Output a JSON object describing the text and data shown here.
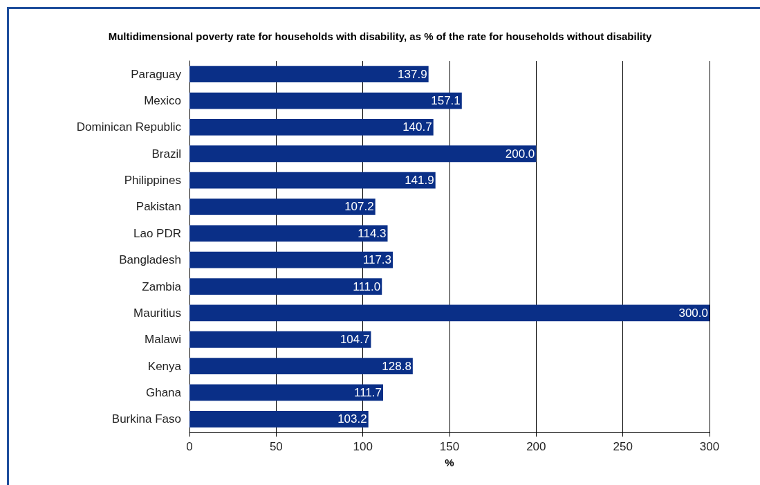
{
  "chart_data": {
    "type": "bar",
    "orientation": "horizontal",
    "title": "Multidimensional poverty rate for households with disability, as % of the rate for households without disability",
    "xlabel": "%",
    "categories": [
      "Paraguay",
      "Mexico",
      "Dominican Republic",
      "Brazil",
      "Philippines",
      "Pakistan",
      "Lao PDR",
      "Bangladesh",
      "Zambia",
      "Mauritius",
      "Malawi",
      "Kenya",
      "Ghana",
      "Burkina Faso"
    ],
    "values": [
      137.9,
      157.1,
      140.7,
      200.0,
      141.9,
      107.2,
      114.3,
      117.3,
      111.0,
      300.0,
      104.7,
      128.8,
      111.7,
      103.2
    ],
    "value_labels": [
      "137.9",
      "157.1",
      "140.7",
      "200.0",
      "141.9",
      "107.2",
      "114.3",
      "117.3",
      "111.0",
      "300.0",
      "104.7",
      "128.8",
      "111.7",
      "103.2"
    ],
    "color": "#0a2f87",
    "xlim": [
      0,
      300
    ],
    "xticks": [
      0,
      50,
      100,
      150,
      200,
      250,
      300
    ],
    "grid": "x"
  }
}
